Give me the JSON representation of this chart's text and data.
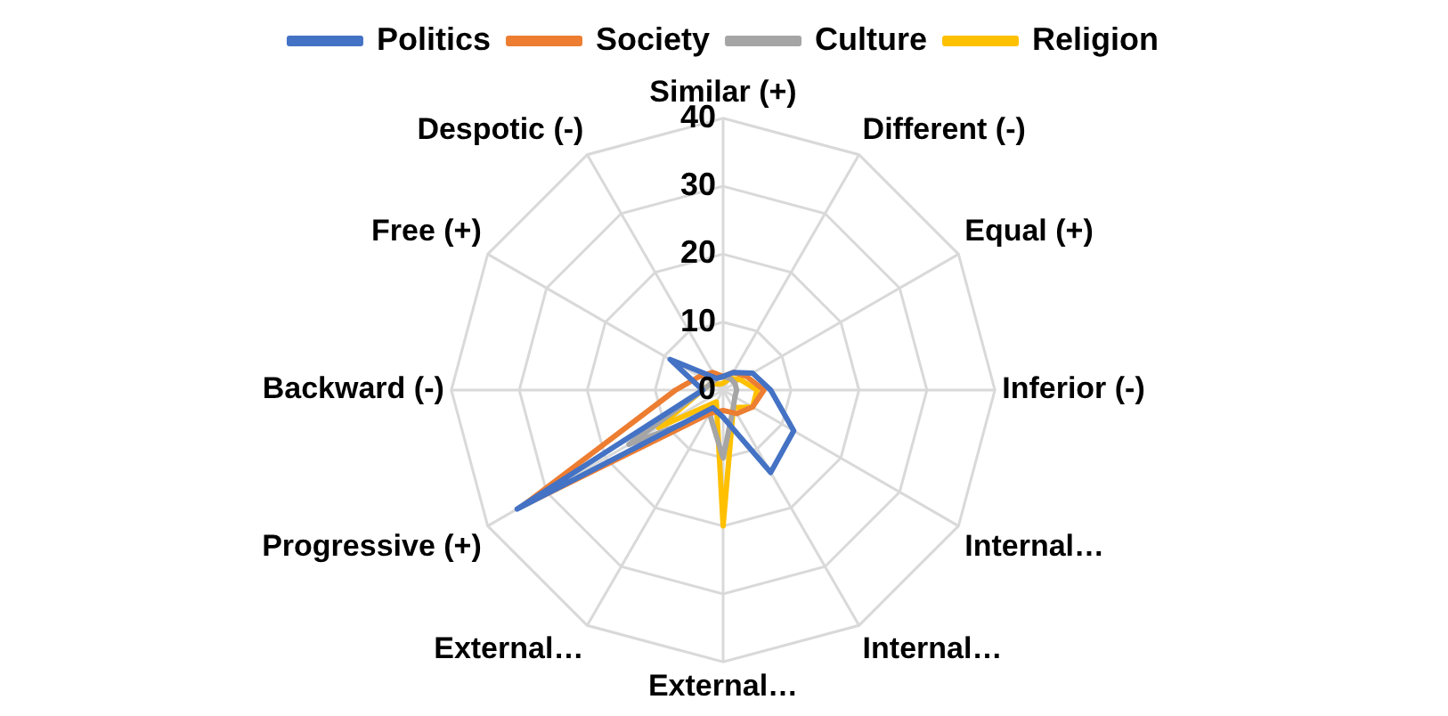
{
  "chart_data": {
    "type": "radar",
    "categories": [
      "Similar (+)",
      "Different (-)",
      "Equal (+)",
      "Inferior (-)",
      "Internal…",
      "Internal…",
      "External…",
      "External…",
      "Progressive (+)",
      "Backward (-)",
      "Free (+)",
      "Despotic (-)"
    ],
    "series": [
      {
        "name": "Politics",
        "color": "#4472c4",
        "values": [
          2,
          3,
          5,
          7,
          12,
          14,
          4,
          3,
          35,
          3,
          9,
          2
        ]
      },
      {
        "name": "Society",
        "color": "#ed7d31",
        "values": [
          2,
          3,
          4,
          6,
          5,
          4,
          3,
          4,
          34,
          7,
          4,
          3
        ]
      },
      {
        "name": "Culture",
        "color": "#a5a5a5",
        "values": [
          2,
          2,
          2,
          2,
          2,
          3,
          10,
          4,
          16,
          3,
          2,
          2
        ]
      },
      {
        "name": "Religion",
        "color": "#ffc000",
        "values": [
          1,
          2,
          3,
          5,
          5,
          3,
          20,
          2,
          11,
          3,
          2,
          1
        ]
      }
    ],
    "ylim": [
      0,
      40
    ],
    "yticks": [
      0,
      10,
      20,
      30,
      40
    ],
    "legend": "top",
    "grid": true,
    "marker": "none",
    "line_style": "solid"
  }
}
